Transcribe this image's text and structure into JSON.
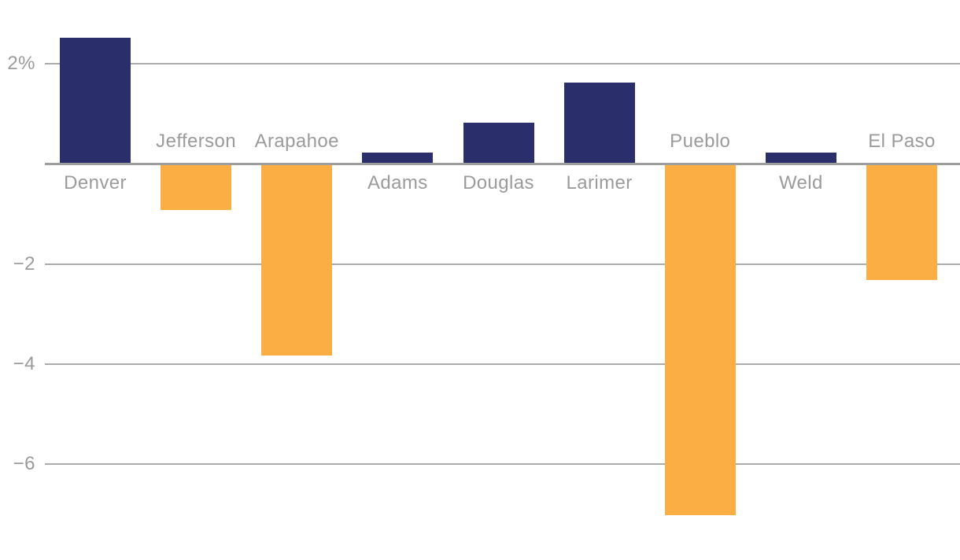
{
  "chart_data": {
    "type": "bar",
    "title": "",
    "categories": [
      "Denver",
      "Jefferson",
      "Arapahoe",
      "Adams",
      "Douglas",
      "Larimer",
      "Pueblo",
      "Weld",
      "El Paso"
    ],
    "values": [
      2.5,
      -0.9,
      -3.8,
      0.2,
      0.8,
      1.6,
      -7.0,
      0.2,
      -2.3
    ],
    "unit": "%",
    "ylim": [
      -7.6,
      2.7
    ],
    "grid": true,
    "legend": false,
    "baseline_value": 0,
    "gridlines": [
      {
        "value": 2,
        "label": "2%"
      },
      {
        "value": -2,
        "label": "−2"
      },
      {
        "value": -4,
        "label": "−4"
      },
      {
        "value": -6,
        "label": "−6"
      }
    ],
    "colors": {
      "positive": "#2a2e6b",
      "negative": "#faae43",
      "gridline": "#ababab",
      "baseline": "#9e9e9e",
      "label": "#9b9b9b"
    }
  }
}
